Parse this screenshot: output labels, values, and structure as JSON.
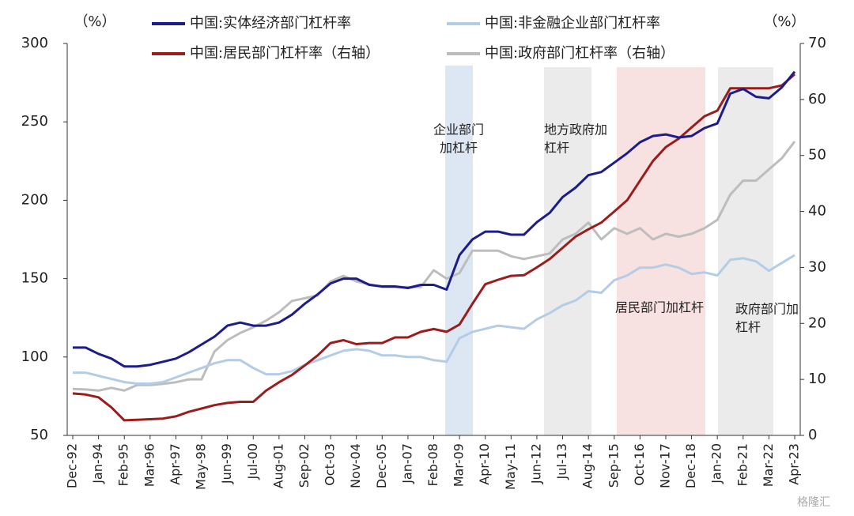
{
  "chart_data": {
    "type": "line",
    "y_label": "（%）",
    "y2_label": "（%）",
    "categories": [
      "Dec-92",
      null,
      "Jan-94",
      null,
      "Feb-95",
      null,
      "Mar-96",
      null,
      "Apr-97",
      null,
      "May-98",
      null,
      "Jun-99",
      null,
      "Jul-00",
      null,
      "Aug-01",
      null,
      "Sep-02",
      null,
      "Oct-03",
      null,
      "Nov-04",
      null,
      "Dec-05",
      null,
      "Jan-07",
      null,
      "Feb-08",
      null,
      "Mar-09",
      null,
      "Apr-10",
      null,
      "May-11",
      null,
      "Jun-12",
      null,
      "Jul-13",
      null,
      "Aug-14",
      null,
      "Sep-15",
      null,
      "Oct-16",
      null,
      "Nov-17",
      null,
      "Dec-18",
      null,
      "Jan-20",
      null,
      "Feb-21",
      null,
      "Mar-22",
      null,
      "Apr-23"
    ],
    "series": [
      {
        "name": "中国:实体经济部门杠杆率",
        "color": "#1c1c8a",
        "axis": "y",
        "values": [
          106,
          106,
          102,
          99,
          94,
          94,
          95,
          97,
          99,
          103,
          108,
          113,
          120,
          122,
          120,
          120,
          122,
          127,
          134,
          140,
          147,
          150,
          150,
          146,
          145,
          145,
          144,
          146,
          146,
          143,
          165,
          175,
          180,
          180,
          178,
          178,
          186,
          192,
          202,
          208,
          216,
          218,
          224,
          230,
          237,
          241,
          242,
          240,
          241,
          246,
          249,
          268,
          271,
          266,
          265,
          272,
          282
        ]
      },
      {
        "name": "中国:非金融企业部门杠杆率",
        "color": "#b4cde6",
        "axis": "y",
        "values": [
          90,
          90,
          88,
          86,
          84,
          83,
          83,
          84,
          87,
          90,
          93,
          96,
          98,
          98,
          93,
          89,
          89,
          91,
          95,
          98,
          101,
          104,
          105,
          104,
          101,
          101,
          100,
          100,
          98,
          97,
          112,
          116,
          118,
          120,
          119,
          118,
          124,
          128,
          133,
          136,
          142,
          141,
          149,
          152,
          157,
          157,
          159,
          157,
          153,
          154,
          152,
          162,
          163,
          161,
          155,
          160,
          165
        ]
      },
      {
        "name": "中国:居民部门杠杆率（右轴）",
        "color": "#9b1c1c",
        "axis": "y2",
        "values": [
          7.5,
          7.3,
          6.8,
          5,
          2.7,
          2.8,
          2.9,
          3,
          3.4,
          4.2,
          4.8,
          5.4,
          5.8,
          6,
          6,
          8,
          9.5,
          10.8,
          12.5,
          14.3,
          16.5,
          17,
          16.3,
          16.5,
          16.5,
          17.5,
          17.5,
          18.5,
          19,
          18.5,
          19.8,
          23.5,
          27,
          27.8,
          28.5,
          28.6,
          30,
          31.5,
          33.5,
          35.5,
          36.8,
          38,
          40,
          42,
          45.5,
          49,
          51.5,
          53,
          55,
          57,
          58,
          62,
          62,
          62,
          62,
          62.5,
          64.5
        ]
      },
      {
        "name": "中国:政府部门杠杆率（右轴）",
        "color": "#bdbdbd",
        "axis": "y2",
        "values": [
          8.3,
          8.2,
          8,
          8.5,
          8,
          9,
          9,
          9.2,
          9.5,
          10,
          10,
          15,
          17,
          18.3,
          19.3,
          20.5,
          22,
          24,
          24.5,
          25,
          27.5,
          28.5,
          27.5,
          27,
          26.5,
          26.5,
          26.5,
          26.5,
          29.5,
          28,
          29,
          33,
          33,
          33,
          32,
          31.5,
          32,
          32.5,
          35,
          36,
          38,
          35,
          37,
          36,
          37,
          35,
          36,
          35.5,
          36,
          37,
          38.5,
          43,
          45.5,
          45.5,
          47.5,
          49.5,
          52.5
        ]
      }
    ],
    "ylim": [
      50,
      300
    ],
    "yticks": [
      50,
      100,
      150,
      200,
      250,
      300
    ],
    "y2lim": [
      0,
      70
    ],
    "y2ticks": [
      0,
      10,
      20,
      30,
      40,
      50,
      60,
      70
    ],
    "annotations": [
      {
        "lines": [
          "企业部门",
          "加杠杆"
        ]
      },
      {
        "lines": [
          "地方政府加",
          "杠杆"
        ]
      },
      {
        "lines": [
          "居民部门加杠杆"
        ]
      },
      {
        "lines": [
          "政府部门加",
          "杠杆"
        ]
      }
    ],
    "watermark": "格隆汇"
  }
}
